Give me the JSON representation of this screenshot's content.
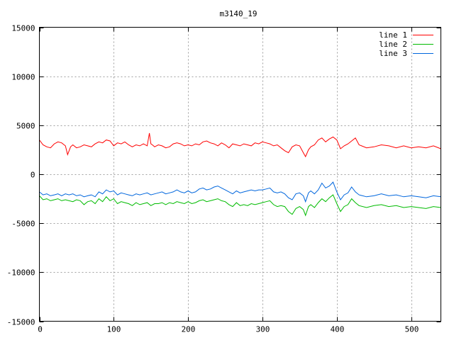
{
  "chart_data": {
    "type": "line",
    "title": "m3140_19",
    "xlabel": "",
    "ylabel": "",
    "xlim": [
      0,
      540
    ],
    "ylim": [
      -15000,
      15000
    ],
    "grid": true,
    "legend_position": "top-right",
    "x_ticks": [
      0,
      100,
      200,
      300,
      400,
      500
    ],
    "y_ticks": [
      -15000,
      -10000,
      -5000,
      0,
      5000,
      10000,
      15000
    ],
    "x_tick_labels": [
      "0",
      "100",
      "200",
      "300",
      "400",
      "500"
    ],
    "y_tick_labels": [
      "-15000",
      "-10000",
      "-5000",
      "0",
      "5000",
      "10000",
      "15000"
    ],
    "series": [
      {
        "name": "line 1",
        "color": "#ff0000",
        "x": [
          0,
          5,
          10,
          15,
          20,
          25,
          30,
          35,
          38,
          42,
          45,
          50,
          55,
          60,
          65,
          70,
          75,
          80,
          85,
          90,
          95,
          100,
          105,
          110,
          115,
          120,
          125,
          130,
          135,
          140,
          145,
          148,
          150,
          152,
          155,
          160,
          165,
          170,
          175,
          180,
          185,
          190,
          195,
          200,
          205,
          210,
          215,
          220,
          225,
          230,
          235,
          240,
          245,
          250,
          255,
          260,
          265,
          270,
          275,
          280,
          285,
          290,
          295,
          300,
          305,
          310,
          315,
          320,
          325,
          330,
          335,
          340,
          345,
          350,
          355,
          358,
          362,
          365,
          370,
          375,
          380,
          385,
          390,
          395,
          400,
          405,
          410,
          415,
          420,
          425,
          430,
          440,
          450,
          460,
          470,
          480,
          490,
          500,
          510,
          520,
          530,
          540
        ],
        "y": [
          3500,
          3000,
          2800,
          2700,
          3100,
          3300,
          3200,
          2900,
          2000,
          2800,
          3000,
          2700,
          2800,
          3000,
          2900,
          2800,
          3100,
          3300,
          3200,
          3500,
          3400,
          2900,
          3200,
          3100,
          3300,
          3000,
          2800,
          3000,
          2900,
          3100,
          2900,
          4200,
          3100,
          3000,
          2800,
          3000,
          2900,
          2700,
          2800,
          3100,
          3200,
          3100,
          2900,
          3000,
          2900,
          3100,
          3000,
          3300,
          3400,
          3200,
          3100,
          2900,
          3200,
          3000,
          2700,
          3100,
          3000,
          2900,
          3100,
          3000,
          2900,
          3200,
          3100,
          3300,
          3200,
          3100,
          2900,
          3000,
          2700,
          2400,
          2200,
          2800,
          3000,
          2900,
          2200,
          1800,
          2500,
          2800,
          3000,
          3500,
          3700,
          3300,
          3600,
          3800,
          3500,
          2600,
          2900,
          3100,
          3400,
          3700,
          3000,
          2700,
          2800,
          3000,
          2900,
          2700,
          2900,
          2700,
          2800,
          2700,
          2900,
          2600
        ]
      },
      {
        "name": "line 2",
        "color": "#00bb00",
        "x": [
          0,
          5,
          10,
          15,
          20,
          25,
          30,
          35,
          40,
          45,
          50,
          55,
          60,
          65,
          70,
          75,
          80,
          85,
          90,
          95,
          100,
          105,
          110,
          115,
          120,
          125,
          130,
          135,
          140,
          145,
          150,
          155,
          160,
          165,
          170,
          175,
          180,
          185,
          190,
          195,
          200,
          205,
          210,
          215,
          220,
          225,
          230,
          235,
          240,
          245,
          250,
          255,
          260,
          265,
          270,
          275,
          280,
          285,
          290,
          295,
          300,
          305,
          310,
          315,
          320,
          325,
          330,
          335,
          340,
          345,
          350,
          355,
          358,
          362,
          365,
          370,
          375,
          380,
          385,
          390,
          395,
          400,
          405,
          410,
          415,
          420,
          425,
          430,
          440,
          450,
          460,
          470,
          480,
          490,
          500,
          510,
          520,
          530,
          540
        ],
        "y": [
          -2200,
          -2600,
          -2500,
          -2700,
          -2600,
          -2500,
          -2700,
          -2600,
          -2700,
          -2800,
          -2600,
          -2700,
          -3100,
          -2800,
          -2700,
          -3000,
          -2500,
          -2800,
          -2300,
          -2700,
          -2500,
          -3000,
          -2800,
          -2900,
          -3000,
          -3200,
          -2900,
          -3100,
          -3000,
          -2900,
          -3200,
          -3000,
          -3000,
          -2900,
          -3100,
          -2900,
          -3000,
          -2800,
          -2900,
          -3000,
          -2800,
          -3000,
          -2900,
          -2700,
          -2600,
          -2800,
          -2700,
          -2600,
          -2500,
          -2700,
          -2800,
          -3100,
          -3300,
          -2900,
          -3200,
          -3100,
          -3200,
          -3000,
          -3100,
          -3000,
          -2900,
          -2800,
          -2700,
          -3100,
          -3300,
          -3200,
          -3300,
          -3800,
          -4100,
          -3500,
          -3300,
          -3600,
          -4200,
          -3300,
          -3100,
          -3400,
          -2900,
          -2500,
          -2800,
          -2400,
          -2100,
          -3000,
          -3800,
          -3300,
          -3100,
          -2500,
          -2900,
          -3200,
          -3400,
          -3200,
          -3100,
          -3300,
          -3200,
          -3400,
          -3300,
          -3400,
          -3500,
          -3300,
          -3400
        ]
      },
      {
        "name": "line 3",
        "color": "#0066dd",
        "x": [
          0,
          5,
          10,
          15,
          20,
          25,
          30,
          35,
          40,
          45,
          50,
          55,
          60,
          65,
          70,
          75,
          80,
          85,
          90,
          95,
          100,
          105,
          110,
          115,
          120,
          125,
          130,
          135,
          140,
          145,
          150,
          155,
          160,
          165,
          170,
          175,
          180,
          185,
          190,
          195,
          200,
          205,
          210,
          215,
          220,
          225,
          230,
          235,
          240,
          245,
          250,
          255,
          260,
          265,
          270,
          275,
          280,
          285,
          290,
          295,
          300,
          305,
          310,
          315,
          320,
          325,
          330,
          335,
          340,
          345,
          350,
          355,
          358,
          362,
          365,
          370,
          375,
          380,
          385,
          390,
          395,
          400,
          405,
          410,
          415,
          420,
          425,
          430,
          440,
          450,
          460,
          470,
          480,
          490,
          500,
          510,
          520,
          530,
          540
        ],
        "y": [
          -1800,
          -2100,
          -2000,
          -2200,
          -2100,
          -2000,
          -2200,
          -2000,
          -2100,
          -2000,
          -2200,
          -2100,
          -2300,
          -2200,
          -2100,
          -2300,
          -1800,
          -2000,
          -1600,
          -1800,
          -1700,
          -2100,
          -1900,
          -2000,
          -2100,
          -2200,
          -2000,
          -2100,
          -2000,
          -1900,
          -2100,
          -2000,
          -1900,
          -1800,
          -2000,
          -1900,
          -1800,
          -1600,
          -1800,
          -1900,
          -1700,
          -1900,
          -1800,
          -1500,
          -1400,
          -1600,
          -1500,
          -1300,
          -1200,
          -1400,
          -1600,
          -1800,
          -2000,
          -1700,
          -1900,
          -1800,
          -1700,
          -1600,
          -1700,
          -1600,
          -1600,
          -1500,
          -1400,
          -1800,
          -1900,
          -1800,
          -2000,
          -2400,
          -2600,
          -2000,
          -1900,
          -2200,
          -2800,
          -1900,
          -1700,
          -2000,
          -1600,
          -900,
          -1400,
          -1200,
          -800,
          -1800,
          -2600,
          -2100,
          -1900,
          -1300,
          -1800,
          -2100,
          -2300,
          -2200,
          -2000,
          -2200,
          -2100,
          -2300,
          -2200,
          -2300,
          -2400,
          -2200,
          -2300
        ]
      }
    ]
  }
}
